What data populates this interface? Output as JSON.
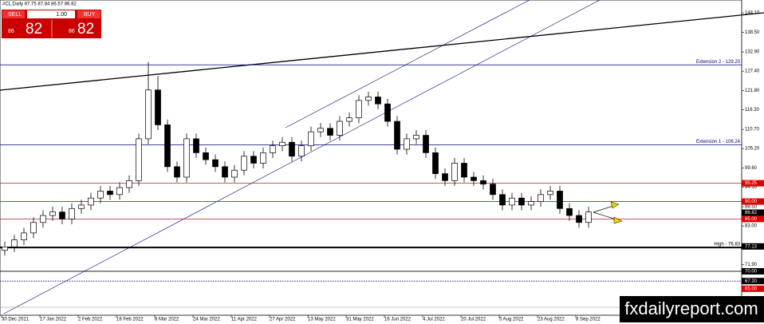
{
  "chart_data": {
    "type": "candlestick",
    "title": "#CL,Daily  87.75 87.84 86.57 86.82",
    "categories": [
      "30 Dec 2021",
      "17 Jan 2022",
      "2 Feb 2022",
      "18 Feb 2022",
      "8 Mar 2022",
      "24 Mar 2022",
      "11 Apr 2022",
      "27 Apr 2022",
      "13 May 2022",
      "31 May 2022",
      "16 Jun 2022",
      "4 Jul 2022",
      "20 Jul 2022",
      "5 Aug 2022",
      "23 Aug 2022",
      "8 Sep 2022"
    ],
    "open": [
      76,
      77,
      79,
      81,
      84,
      86,
      87,
      85,
      88,
      89,
      91,
      93,
      92,
      94,
      96,
      108,
      122,
      112,
      100,
      97,
      108,
      104,
      102,
      100,
      97,
      99,
      103,
      101,
      104,
      106,
      107,
      103,
      106,
      110,
      111,
      109,
      113,
      114,
      119,
      120,
      118,
      113,
      105,
      108,
      109,
      104,
      98,
      96,
      101,
      97,
      96,
      95,
      92,
      89,
      91,
      89,
      90,
      92,
      93,
      88,
      86,
      84
    ],
    "high": [
      78.5,
      80.5,
      82.5,
      85.5,
      87.5,
      88.5,
      88.5,
      89.5,
      90.5,
      92.5,
      94.5,
      94.5,
      95.5,
      97.5,
      109.5,
      130,
      126,
      113.5,
      101.5,
      109.5,
      109.5,
      105.5,
      103.5,
      101.5,
      100.5,
      104.5,
      104.5,
      105.5,
      107.5,
      108.5,
      108.5,
      107.5,
      111.5,
      112.5,
      112.5,
      114.5,
      115.5,
      120.5,
      121.5,
      121.5,
      119.5,
      114.5,
      109.5,
      110.5,
      110.5,
      105.5,
      99.5,
      102.5,
      102.5,
      98.5,
      97.5,
      96.5,
      93.5,
      92.5,
      92.5,
      91.5,
      93.5,
      94.5,
      94.5,
      89.5,
      87.5,
      88.5
    ],
    "low": [
      74.5,
      75.5,
      77.5,
      79.5,
      82.5,
      84.5,
      83.5,
      83.5,
      86.5,
      87.5,
      89.5,
      90.5,
      90.5,
      92.5,
      94.5,
      106.5,
      110.5,
      98.5,
      95.5,
      95.5,
      102.5,
      100.5,
      98.5,
      95.5,
      95.5,
      97.5,
      99.5,
      99.5,
      102.5,
      104.5,
      101.5,
      101.5,
      104.5,
      108.5,
      107.5,
      107.5,
      111.5,
      112.5,
      117.5,
      116.5,
      111.5,
      103.5,
      103.5,
      106.5,
      102.5,
      96.5,
      94.5,
      94.5,
      95.5,
      94.5,
      93.5,
      90.5,
      87.5,
      87.5,
      87.5,
      87.5,
      88.5,
      90.5,
      86.5,
      84.5,
      82.5,
      82.5
    ],
    "close": [
      77,
      79,
      81,
      84,
      86,
      87,
      85,
      88,
      89,
      91,
      93,
      92,
      94,
      96,
      108,
      122,
      112,
      100,
      97,
      108,
      104,
      102,
      100,
      97,
      99,
      103,
      101,
      104,
      106,
      107,
      103,
      106,
      110,
      111,
      109,
      113,
      114,
      119,
      120,
      118,
      113,
      105,
      108,
      109,
      104,
      98,
      96,
      101,
      97,
      96,
      95,
      92,
      89,
      91,
      89,
      90,
      92,
      93,
      88,
      86,
      84,
      87
    ],
    "ylim": [
      57.4,
      147.8
    ],
    "yticks": [
      {
        "value": 144.1,
        "label": "144.10"
      },
      {
        "value": 138.5,
        "label": "138.50"
      },
      {
        "value": 132.9,
        "label": "132.90"
      },
      {
        "value": 127.4,
        "label": "127.40"
      },
      {
        "value": 121.8,
        "label": "121.80"
      },
      {
        "value": 116.3,
        "label": "116.30"
      },
      {
        "value": 110.7,
        "label": "110.70"
      },
      {
        "value": 105.2,
        "label": "105.20"
      },
      {
        "value": 99.6,
        "label": "99.60"
      },
      {
        "value": 94.1,
        "label": "94.10"
      },
      {
        "value": 88.5,
        "label": "88.50"
      },
      {
        "value": 83,
        "label": "83.00"
      },
      {
        "value": 71.9,
        "label": "71.90"
      }
    ],
    "levels": [
      {
        "value": 129.2,
        "label": "Extension 2 - 129.20",
        "color": "#000080",
        "style": "solid"
      },
      {
        "value": 106.24,
        "label": "Extension 1 - 106.24",
        "color": "#000080",
        "style": "solid"
      },
      {
        "value": 95.25,
        "color": "#b22222",
        "style": "solid"
      },
      {
        "value": 90,
        "color": "#b22222",
        "style": "solid"
      },
      {
        "value": 85,
        "color": "#b22222",
        "style": "solid"
      },
      {
        "value": 76.83,
        "label": "High - 76.83",
        "color": "#000000",
        "style": "thick"
      },
      {
        "value": 70,
        "color": "#000000",
        "style": "solid"
      },
      {
        "value": 67.2,
        "color": "#000080",
        "style": "dotted"
      }
    ],
    "price_tags": [
      {
        "value": 95.25,
        "label": "95.25",
        "color": "#e00000"
      },
      {
        "value": 90,
        "label": "90.00",
        "color": "#e00000"
      },
      {
        "value": 86.82,
        "label": "86.82",
        "color": "#000000"
      },
      {
        "value": 85,
        "label": "85.00",
        "color": "#e00000"
      },
      {
        "value": 77.13,
        "label": "77.13",
        "color": "#000000"
      },
      {
        "value": 70,
        "label": "70.00",
        "color": "#000000"
      },
      {
        "value": 67.2,
        "label": "67.20",
        "color": "#000000"
      },
      {
        "value": 65,
        "label": "65.00",
        "color": "#e00000"
      }
    ]
  },
  "trade_panel": {
    "sell": "SELL",
    "buy": "BUY",
    "lots": "1.00",
    "bid_small": "86",
    "bid_big": "82",
    "ask_small": "86",
    "ask_big": "82"
  },
  "watermark": "fxdailyreport.com"
}
